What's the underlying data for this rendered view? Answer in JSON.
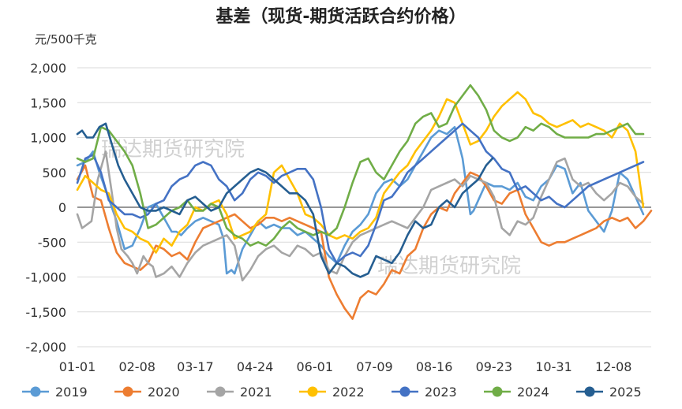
{
  "chart_data": {
    "type": "line",
    "title": "基差（现货-期货活跃合约价格）",
    "unit_label": "元/500千克",
    "watermarks": [
      "瑞达期货研究院",
      "瑞达期货研究院"
    ],
    "ylim": [
      -2000,
      2000
    ],
    "y_ticks": [
      2000,
      1500,
      1000,
      500,
      0,
      -500,
      -1000,
      -1500,
      -2000
    ],
    "y_tick_labels": [
      "2,000",
      "1,500",
      "1,000",
      "500",
      "0",
      "-500",
      "-1,000",
      "-1,500",
      "-2,000"
    ],
    "x_ticks": [
      0,
      38,
      75,
      113,
      151,
      189,
      227,
      265,
      303,
      341
    ],
    "x_tick_labels": [
      "01-01",
      "02-08",
      "03-17",
      "04-24",
      "06-01",
      "07-09",
      "08-16",
      "09-23",
      "10-31",
      "12-08"
    ],
    "xlim": [
      0,
      365
    ],
    "grid": "horizontal",
    "legend_position": "bottom",
    "series": [
      {
        "name": "2019",
        "color": "#5b9bd5",
        "x": [
          0,
          5,
          10,
          14,
          18,
          25,
          30,
          35,
          40,
          45,
          50,
          55,
          60,
          63,
          66,
          70,
          75,
          80,
          85,
          90,
          93,
          95,
          98,
          100,
          105,
          110,
          115,
          120,
          125,
          130,
          135,
          140,
          145,
          150,
          155,
          160,
          165,
          170,
          175,
          180,
          185,
          190,
          195,
          200,
          205,
          210,
          215,
          220,
          225,
          230,
          235,
          240,
          245,
          250,
          252,
          255,
          258,
          260,
          265,
          270,
          275,
          280,
          285,
          290,
          295,
          300,
          305,
          310,
          315,
          320,
          325,
          330,
          335,
          340,
          345,
          350,
          355,
          360
        ],
        "y": [
          600,
          650,
          800,
          500,
          250,
          -200,
          -600,
          -550,
          -300,
          0,
          50,
          -150,
          -350,
          -350,
          -400,
          -300,
          -200,
          -150,
          -200,
          -250,
          -450,
          -950,
          -900,
          -950,
          -600,
          -400,
          -200,
          -300,
          -250,
          -300,
          -300,
          -400,
          -350,
          -450,
          -550,
          -700,
          -800,
          -550,
          -350,
          -250,
          -100,
          200,
          350,
          400,
          300,
          400,
          600,
          800,
          1000,
          1100,
          1050,
          1150,
          700,
          -100,
          -50,
          100,
          250,
          350,
          300,
          300,
          250,
          350,
          150,
          100,
          300,
          400,
          600,
          550,
          200,
          350,
          -50,
          -200,
          -350,
          -50,
          500,
          400,
          150,
          -100
        ]
      },
      {
        "name": "2020",
        "color": "#ed7d31",
        "x": [
          0,
          5,
          10,
          15,
          20,
          25,
          30,
          35,
          40,
          45,
          50,
          55,
          60,
          65,
          70,
          75,
          80,
          85,
          90,
          95,
          100,
          105,
          110,
          115,
          120,
          125,
          130,
          135,
          140,
          145,
          150,
          155,
          160,
          165,
          170,
          175,
          180,
          185,
          190,
          195,
          200,
          205,
          210,
          215,
          220,
          225,
          230,
          235,
          240,
          245,
          250,
          255,
          260,
          265,
          270,
          275,
          280,
          285,
          290,
          295,
          300,
          305,
          310,
          315,
          320,
          325,
          330,
          335,
          340,
          345,
          350,
          355,
          360,
          365
        ],
        "y": [
          400,
          600,
          150,
          100,
          -300,
          -650,
          -800,
          -850,
          -900,
          -800,
          -550,
          -600,
          -700,
          -650,
          -750,
          -500,
          -300,
          -250,
          -200,
          -150,
          -100,
          -200,
          -300,
          -250,
          -150,
          -150,
          -200,
          -150,
          -200,
          -250,
          -300,
          -350,
          -1000,
          -1250,
          -1450,
          -1600,
          -1300,
          -1200,
          -1250,
          -1100,
          -900,
          -950,
          -700,
          -600,
          -300,
          -100,
          0,
          -50,
          200,
          350,
          500,
          450,
          300,
          100,
          50,
          200,
          250,
          -100,
          -300,
          -500,
          -550,
          -500,
          -500,
          -450,
          -400,
          -350,
          -300,
          -200,
          -150,
          -200,
          -150,
          -300,
          -200,
          -50
        ]
      },
      {
        "name": "2021",
        "color": "#a5a5a5",
        "x": [
          0,
          3,
          6,
          9,
          13,
          18,
          22,
          25,
          28,
          32,
          35,
          38,
          42,
          45,
          48,
          50,
          55,
          60,
          65,
          70,
          75,
          80,
          85,
          90,
          95,
          100,
          105,
          110,
          115,
          120,
          125,
          130,
          135,
          140,
          145,
          150,
          155,
          160,
          165,
          170,
          175,
          180,
          185,
          190,
          195,
          200,
          205,
          210,
          215,
          220,
          225,
          230,
          235,
          240,
          245,
          250,
          255,
          260,
          265,
          270,
          275,
          280,
          285,
          290,
          295,
          300,
          305,
          310,
          315,
          320,
          325,
          330,
          335,
          340,
          345,
          350,
          355,
          360
        ],
        "y": [
          -100,
          -300,
          -250,
          -200,
          400,
          800,
          200,
          -300,
          -600,
          -700,
          -800,
          -950,
          -700,
          -800,
          -850,
          -1000,
          -950,
          -850,
          -1000,
          -800,
          -650,
          -550,
          -500,
          -450,
          -400,
          -550,
          -1050,
          -900,
          -700,
          -600,
          -550,
          -650,
          -700,
          -550,
          -600,
          -700,
          -650,
          -900,
          -950,
          -700,
          -500,
          -400,
          -350,
          -300,
          -250,
          -200,
          -250,
          -300,
          -150,
          0,
          250,
          300,
          350,
          400,
          300,
          450,
          400,
          350,
          150,
          -300,
          -400,
          -200,
          -250,
          -150,
          150,
          400,
          650,
          700,
          400,
          300,
          350,
          200,
          100,
          200,
          350,
          300,
          150,
          50
        ]
      },
      {
        "name": "2022",
        "color": "#ffc000",
        "x": [
          0,
          5,
          10,
          15,
          20,
          25,
          30,
          35,
          40,
          45,
          50,
          55,
          60,
          65,
          70,
          75,
          80,
          85,
          90,
          95,
          100,
          105,
          110,
          115,
          120,
          125,
          130,
          135,
          140,
          145,
          150,
          155,
          160,
          165,
          170,
          175,
          180,
          185,
          190,
          195,
          200,
          205,
          210,
          215,
          220,
          225,
          230,
          235,
          240,
          245,
          250,
          255,
          260,
          265,
          270,
          275,
          280,
          285,
          290,
          295,
          300,
          305,
          310,
          315,
          320,
          325,
          330,
          335,
          340,
          345,
          350,
          355,
          360
        ],
        "y": [
          250,
          450,
          350,
          250,
          200,
          -100,
          -300,
          -350,
          -450,
          -500,
          -650,
          -450,
          -550,
          -350,
          -250,
          0,
          -50,
          50,
          100,
          -100,
          -450,
          -400,
          -350,
          -200,
          -100,
          500,
          600,
          400,
          200,
          -100,
          -150,
          -250,
          -400,
          -450,
          -400,
          -450,
          -350,
          -300,
          -150,
          200,
          350,
          500,
          600,
          800,
          950,
          1100,
          1300,
          1550,
          1500,
          1200,
          900,
          950,
          1100,
          1300,
          1450,
          1550,
          1650,
          1550,
          1350,
          1300,
          1200,
          1150,
          1200,
          1250,
          1150,
          1200,
          1150,
          1100,
          1000,
          1200,
          1100,
          800,
          0
        ]
      },
      {
        "name": "2023",
        "color": "#4472c4",
        "x": [
          0,
          5,
          10,
          15,
          20,
          25,
          30,
          35,
          40,
          45,
          50,
          55,
          60,
          65,
          70,
          75,
          80,
          85,
          90,
          95,
          100,
          105,
          110,
          115,
          120,
          125,
          130,
          135,
          140,
          145,
          150,
          155,
          160,
          165,
          170,
          175,
          180,
          185,
          190,
          195,
          200,
          205,
          210,
          215,
          220,
          225,
          230,
          235,
          240,
          245,
          250,
          255,
          260,
          265,
          270,
          275,
          280,
          285,
          290,
          295,
          300,
          305,
          310,
          315,
          320,
          325,
          330,
          335,
          340,
          345,
          350,
          355,
          360
        ],
        "y": [
          350,
          700,
          750,
          500,
          100,
          0,
          -100,
          -100,
          -150,
          -100,
          50,
          100,
          300,
          400,
          450,
          600,
          650,
          600,
          400,
          300,
          100,
          200,
          400,
          500,
          450,
          350,
          450,
          500,
          550,
          550,
          400,
          0,
          -600,
          -800,
          -700,
          -650,
          -700,
          -550,
          -250,
          100,
          150,
          300,
          500,
          600,
          700,
          800,
          900,
          1000,
          1100,
          1200,
          1100,
          1000,
          800,
          700,
          550,
          500,
          250,
          300,
          200,
          100,
          150,
          50,
          0,
          100,
          200,
          300,
          350,
          400,
          450,
          500,
          550,
          600,
          650
        ]
      },
      {
        "name": "2024",
        "color": "#70ad47",
        "x": [
          0,
          5,
          10,
          15,
          20,
          25,
          30,
          35,
          40,
          45,
          50,
          55,
          60,
          65,
          70,
          75,
          80,
          85,
          90,
          95,
          100,
          105,
          110,
          115,
          120,
          125,
          130,
          135,
          140,
          145,
          150,
          155,
          160,
          165,
          170,
          175,
          180,
          185,
          190,
          195,
          200,
          205,
          210,
          215,
          220,
          225,
          230,
          235,
          240,
          245,
          250,
          255,
          260,
          265,
          270,
          275,
          280,
          285,
          290,
          295,
          300,
          305,
          310,
          315,
          320,
          325,
          330,
          335,
          340,
          345,
          350,
          355,
          360
        ],
        "y": [
          700,
          650,
          700,
          1150,
          1100,
          950,
          800,
          600,
          200,
          -300,
          -250,
          -150,
          -50,
          0,
          100,
          -50,
          -50,
          50,
          0,
          -300,
          -400,
          -450,
          -550,
          -500,
          -550,
          -450,
          -300,
          -200,
          -300,
          -350,
          -400,
          -350,
          -400,
          -300,
          0,
          350,
          650,
          700,
          500,
          400,
          600,
          800,
          950,
          1200,
          1300,
          1350,
          1150,
          1200,
          1450,
          1600,
          1750,
          1600,
          1400,
          1100,
          1000,
          950,
          1000,
          1150,
          1100,
          1200,
          1150,
          1050,
          1000,
          1000,
          1000,
          1000,
          1050,
          1050,
          1100,
          1150,
          1200,
          1050,
          1050
        ]
      },
      {
        "name": "2025",
        "color": "#255e91",
        "x": [
          0,
          3,
          6,
          10,
          14,
          18,
          22,
          26,
          30,
          35,
          40,
          45,
          50,
          55,
          60,
          65,
          70,
          75,
          80,
          85,
          90,
          95,
          100,
          105,
          110,
          115,
          120,
          125,
          130,
          135,
          140,
          145,
          150,
          155,
          160,
          165,
          170,
          175,
          180,
          185,
          190,
          195,
          200,
          205,
          210,
          215,
          220,
          225,
          230,
          235,
          240,
          245,
          250,
          255,
          260,
          264
        ],
        "y": [
          1050,
          1100,
          1000,
          1000,
          1150,
          1200,
          900,
          600,
          400,
          200,
          0,
          -50,
          -50,
          0,
          -50,
          -100,
          100,
          150,
          50,
          -50,
          0,
          200,
          300,
          400,
          500,
          550,
          500,
          400,
          300,
          200,
          200,
          100,
          -100,
          -700,
          -950,
          -800,
          -850,
          -950,
          -1000,
          -950,
          -700,
          -750,
          -800,
          -650,
          -400,
          -200,
          -300,
          -250,
          0,
          100,
          0,
          200,
          300,
          400,
          600,
          700
        ]
      }
    ]
  }
}
